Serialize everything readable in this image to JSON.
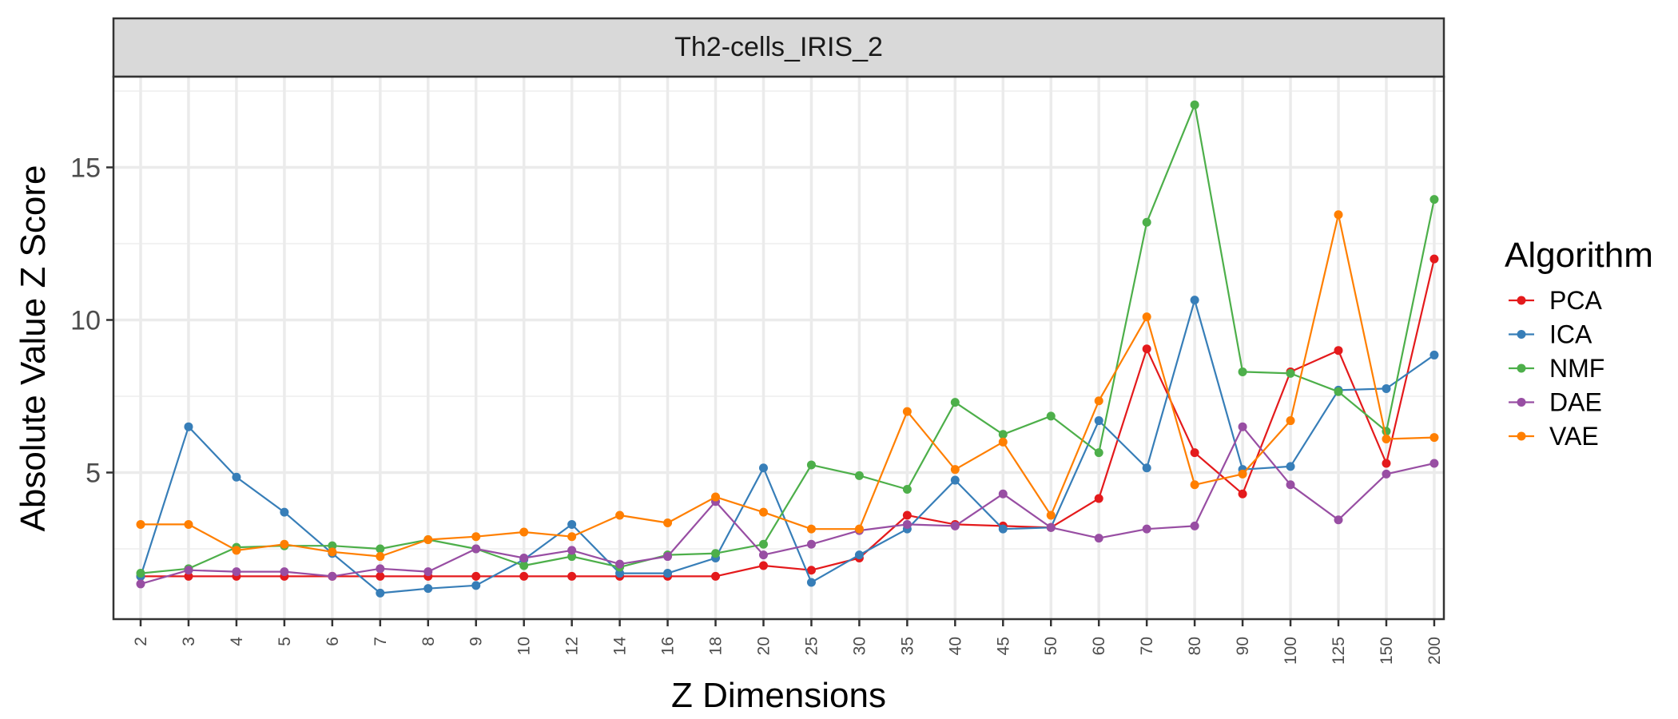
{
  "chart_data": {
    "type": "line",
    "title": "",
    "facet_label": "Th2-cells_IRIS_2",
    "xlabel": "Z Dimensions",
    "ylabel": "Absolute Value Z Score",
    "categories": [
      "2",
      "3",
      "4",
      "5",
      "6",
      "7",
      "8",
      "9",
      "10",
      "12",
      "14",
      "16",
      "18",
      "20",
      "25",
      "30",
      "35",
      "40",
      "45",
      "50",
      "60",
      "70",
      "80",
      "90",
      "100",
      "125",
      "150",
      "200"
    ],
    "ylim": [
      0.8,
      18.5
    ],
    "yticks": [
      5,
      10,
      15
    ],
    "grid": true,
    "legend": {
      "title": "Algorithm",
      "position": "right"
    },
    "series": [
      {
        "name": "PCA",
        "color": "#e41a1c",
        "values": [
          1.6,
          1.6,
          1.6,
          1.6,
          1.6,
          1.6,
          1.6,
          1.6,
          1.6,
          1.6,
          1.6,
          1.6,
          1.6,
          1.95,
          1.8,
          2.2,
          3.6,
          3.3,
          3.25,
          3.2,
          4.15,
          9.05,
          5.65,
          4.3,
          8.3,
          9.0,
          5.3,
          12.0
        ]
      },
      {
        "name": "ICA",
        "color": "#377eb8",
        "values": [
          1.6,
          6.5,
          4.85,
          3.7,
          2.35,
          1.05,
          1.2,
          1.3,
          2.15,
          3.3,
          1.7,
          1.7,
          2.2,
          5.15,
          1.4,
          2.3,
          3.15,
          4.75,
          3.15,
          3.2,
          6.7,
          5.15,
          10.65,
          5.1,
          5.2,
          7.7,
          7.75,
          8.85
        ]
      },
      {
        "name": "NMF",
        "color": "#4daf4a",
        "values": [
          1.7,
          1.85,
          2.55,
          2.6,
          2.6,
          2.5,
          2.8,
          2.5,
          1.95,
          2.25,
          1.9,
          2.3,
          2.35,
          2.65,
          5.25,
          4.9,
          4.45,
          7.3,
          6.25,
          6.85,
          5.65,
          13.2,
          17.05,
          8.3,
          8.25,
          7.65,
          6.35,
          13.95
        ]
      },
      {
        "name": "DAE",
        "color": "#984ea3",
        "values": [
          1.35,
          1.8,
          1.75,
          1.75,
          1.6,
          1.85,
          1.75,
          2.5,
          2.2,
          2.45,
          2.0,
          2.25,
          4.05,
          2.3,
          2.65,
          3.1,
          3.3,
          3.25,
          4.3,
          3.2,
          2.85,
          3.15,
          3.25,
          6.5,
          4.6,
          3.45,
          4.95,
          5.3
        ]
      },
      {
        "name": "VAE",
        "color": "#ff7f00",
        "values": [
          3.3,
          3.3,
          2.45,
          2.65,
          2.4,
          2.25,
          2.8,
          2.9,
          3.05,
          2.9,
          3.6,
          3.35,
          4.2,
          3.7,
          3.15,
          3.15,
          7.0,
          5.1,
          6.0,
          3.6,
          7.35,
          10.1,
          4.6,
          4.95,
          6.7,
          13.45,
          6.1,
          6.15
        ]
      }
    ]
  }
}
